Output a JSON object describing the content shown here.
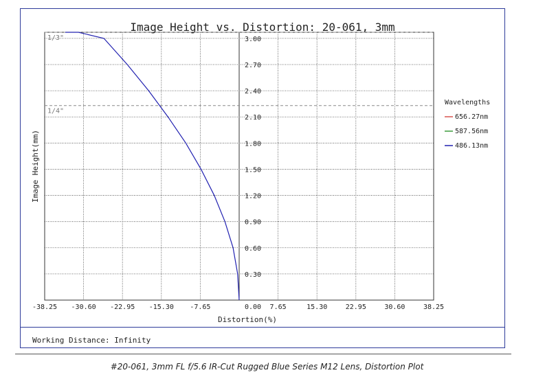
{
  "chart_data": {
    "type": "line",
    "title": "Image Height vs. Distortion: 20-061, 3mm",
    "xlabel": "Distortion(%)",
    "ylabel": "Image Height(mm)",
    "xlim": [
      -38.25,
      38.25
    ],
    "ylim": [
      0,
      3.07
    ],
    "x_ticks": [
      "-38.25",
      "-30.60",
      "-22.95",
      "-15.30",
      "-7.65",
      "0.00",
      "7.65",
      "15.30",
      "22.95",
      "30.60",
      "38.25"
    ],
    "y_ticks": [
      "0.30",
      "0.60",
      "0.90",
      "1.20",
      "1.50",
      "1.80",
      "2.10",
      "2.40",
      "2.70",
      "3.00"
    ],
    "y_tick_values": [
      0.3,
      0.6,
      0.9,
      1.2,
      1.5,
      1.8,
      2.1,
      2.4,
      2.7,
      3.0
    ],
    "grid": true,
    "reference_lines": [
      {
        "label": "1/3\"",
        "y": 3.07
      },
      {
        "label": "1/4\"",
        "y": 2.23
      }
    ],
    "legend": {
      "title": "Wavelengths",
      "placement": "right"
    },
    "series": [
      {
        "name": "656.27nm",
        "color": "#d9534f",
        "x": [],
        "y": []
      },
      {
        "name": "587.56nm",
        "color": "#3a9a3a",
        "x": [],
        "y": []
      },
      {
        "name": "486.13nm",
        "color": "#2020b0",
        "x": [
          0,
          -0.3,
          -1.2,
          -2.8,
          -4.9,
          -7.5,
          -10.5,
          -14.0,
          -17.8,
          -22.0,
          -26.6,
          -31.6,
          -34.2
        ],
        "y": [
          0,
          0.3,
          0.6,
          0.9,
          1.2,
          1.5,
          1.8,
          2.1,
          2.4,
          2.7,
          3.0,
          3.07,
          3.07
        ]
      }
    ]
  },
  "footer": {
    "working_distance": "Working Distance: Infinity"
  },
  "caption": "#20-061, 3mm FL f/5.6 IR-Cut Rugged Blue Series M12 Lens, Distortion Plot"
}
